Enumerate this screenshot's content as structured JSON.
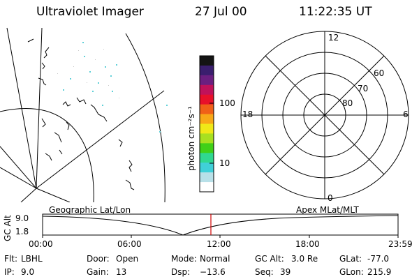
{
  "header": {
    "instrument": "Ultraviolet Imager",
    "date": "27 Jul 00",
    "time": "11:22:35 UT"
  },
  "colorbar": {
    "unit_label": "photon cm⁻²s⁻¹",
    "tick_labels": [
      "100",
      "10"
    ],
    "colors": [
      "#141414",
      "#3a1e6e",
      "#6b1f80",
      "#c0125a",
      "#e8102a",
      "#f06018",
      "#f8a818",
      "#f0e818",
      "#a8e020",
      "#40d018",
      "#30d890",
      "#40d0d8",
      "#b8e0e8",
      "#ffffff"
    ]
  },
  "polar_plot": {
    "lat_labels": [
      "60",
      "70",
      "80"
    ],
    "mlt_labels": {
      "top": "12",
      "left": "18",
      "right": "6",
      "bottom": "0"
    }
  },
  "timeline": {
    "left_title": "Geographic Lat/Lon",
    "right_title": "Apex MLat/MLT",
    "axis_label": "GC Alt",
    "y_ticks": [
      "9.0",
      "1.8"
    ],
    "x_ticks": [
      "00:00",
      "06:00",
      "12:00",
      "18:00",
      "23:59"
    ],
    "current_marker_color": "#d00000"
  },
  "status": {
    "row1": [
      {
        "label": "Flt:",
        "value": "LBHL"
      },
      {
        "label": "Door:",
        "value": "Open"
      },
      {
        "label": "Mode:",
        "value": "Normal"
      },
      {
        "label": "GC Alt:",
        "value": "3.0 Re"
      },
      {
        "label": "GLat:",
        "value": "-77.0"
      }
    ],
    "row2": [
      {
        "label": "IP:",
        "value": "9.0"
      },
      {
        "label": "Gain:",
        "value": "13"
      },
      {
        "label": "Dsp:",
        "value": "−13.6"
      },
      {
        "label": "Seq:",
        "value": "39"
      },
      {
        "label": "GLon:",
        "value": "215.9"
      }
    ]
  }
}
